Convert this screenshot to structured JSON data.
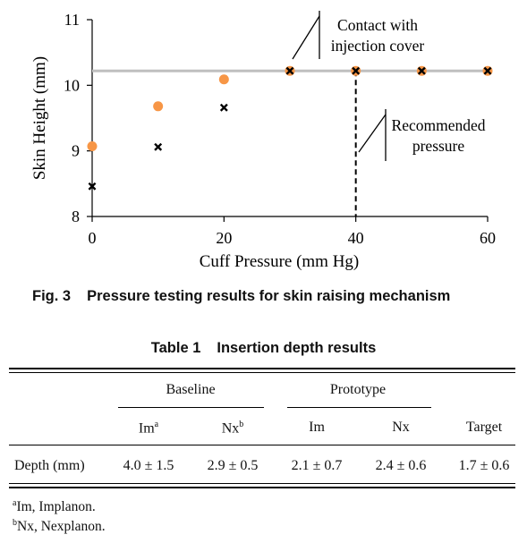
{
  "figure": {
    "caption_number": "Fig. 3",
    "caption_text": "Pressure testing results for skin raising mechanism"
  },
  "chart_data": {
    "type": "scatter",
    "xlabel": "Cuff Pressure (mm Hg)",
    "ylabel": "Skin Height (mm)",
    "xlim": [
      0,
      60
    ],
    "ylim": [
      8,
      11
    ],
    "x_ticks": [
      "0",
      "20",
      "40",
      "60"
    ],
    "y_ticks": [
      "8",
      "9",
      "10",
      "11"
    ],
    "reference_line_y": 10.22,
    "vertical_dashed_x": 40,
    "annotations": [
      {
        "text_lines": [
          "Contact with",
          "injection cover"
        ]
      },
      {
        "text_lines": [
          "Recommended",
          "pressure"
        ]
      }
    ],
    "series": [
      {
        "marker": "circle",
        "color": "#F79646",
        "x": [
          0,
          10,
          20,
          30,
          40,
          50,
          60
        ],
        "y": [
          9.07,
          9.68,
          10.09,
          10.22,
          10.22,
          10.22,
          10.22
        ]
      },
      {
        "marker": "x",
        "color": "#000000",
        "x": [
          0,
          10,
          20,
          30,
          40,
          50,
          60
        ],
        "y": [
          8.46,
          9.06,
          9.66,
          10.22,
          10.22,
          10.22,
          10.22
        ]
      }
    ]
  },
  "table": {
    "number": "Table 1",
    "title": "Insertion depth results",
    "group_headers": [
      "Baseline",
      "Prototype"
    ],
    "columns": [
      {
        "label": "Im",
        "sup": "a"
      },
      {
        "label": "Nx",
        "sup": "b"
      },
      {
        "label": "Im",
        "sup": ""
      },
      {
        "label": "Nx",
        "sup": ""
      },
      {
        "label": "Target",
        "sup": ""
      }
    ],
    "row_label": "Depth (mm)",
    "values": [
      "4.0 ± 1.5",
      "2.9 ± 0.5",
      "2.1 ± 0.7",
      "2.4 ± 0.6",
      "1.7 ± 0.6"
    ],
    "footnotes": [
      {
        "sup": "a",
        "text": "Im, Implanon."
      },
      {
        "sup": "b",
        "text": "Nx, Nexplanon."
      }
    ]
  }
}
